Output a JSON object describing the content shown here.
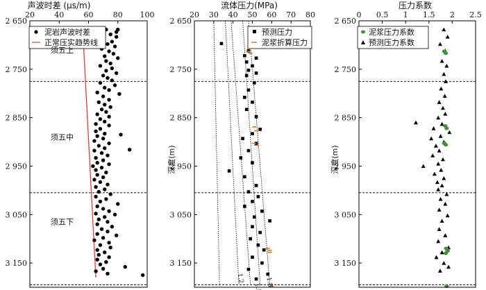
{
  "chart_data": [
    {
      "type": "scatter",
      "title": "声波时差 (μs/m)",
      "ylabel": "",
      "xlim": [
        20,
        100
      ],
      "ylim": [
        2650,
        3200
      ],
      "x_ticks": [
        "20",
        "40",
        "60",
        "80",
        "100"
      ],
      "y_ticks": [
        "2 650",
        "2 750",
        "2 850",
        "2 950",
        "3 050",
        "3 150"
      ],
      "zones": [
        {
          "name": "须五上",
          "depth": 2710
        },
        {
          "name": "须五中",
          "depth": 2890
        },
        {
          "name": "须五下",
          "depth": 3065
        }
      ],
      "boundaries": [
        2775,
        3005,
        3195
      ],
      "legend": [
        "泥岩声波时差",
        "正常压实趋势线"
      ],
      "series": [
        {
          "name": "泥岩声波时差",
          "points": [
            [
              72,
              2668
            ],
            [
              80,
              2668
            ],
            [
              79,
              2673
            ],
            [
              75,
              2678
            ],
            [
              79,
              2683
            ],
            [
              70,
              2688
            ],
            [
              76,
              2693
            ],
            [
              73,
              2698
            ],
            [
              78,
              2703
            ],
            [
              69,
              2708
            ],
            [
              74,
              2713
            ],
            [
              77,
              2718
            ],
            [
              71,
              2723
            ],
            [
              80,
              2727
            ],
            [
              72,
              2733
            ],
            [
              75,
              2738
            ],
            [
              68,
              2743
            ],
            [
              76,
              2748
            ],
            [
              72,
              2753
            ],
            [
              79,
              2758
            ],
            [
              70,
              2763
            ],
            [
              73,
              2768
            ],
            [
              76,
              2773
            ],
            [
              68,
              2778
            ],
            [
              78,
              2783
            ],
            [
              71,
              2788
            ],
            [
              74,
              2793
            ],
            [
              66,
              2798
            ],
            [
              81,
              2801
            ],
            [
              70,
              2806
            ],
            [
              74,
              2813
            ],
            [
              67,
              2818
            ],
            [
              71,
              2823
            ],
            [
              75,
              2828
            ],
            [
              69,
              2833
            ],
            [
              72,
              2838
            ],
            [
              66,
              2843
            ],
            [
              74,
              2848
            ],
            [
              68,
              2853
            ],
            [
              71,
              2858
            ],
            [
              65,
              2863
            ],
            [
              74,
              2866
            ],
            [
              68,
              2873
            ],
            [
              65,
              2878
            ],
            [
              71,
              2883
            ],
            [
              82,
              2885
            ],
            [
              66,
              2888
            ],
            [
              70,
              2893
            ],
            [
              64,
              2898
            ],
            [
              74,
              2903
            ],
            [
              67,
              2908
            ],
            [
              71,
              2913
            ],
            [
              88,
              2916
            ],
            [
              64,
              2918
            ],
            [
              69,
              2923
            ],
            [
              73,
              2928
            ],
            [
              65,
              2933
            ],
            [
              70,
              2938
            ],
            [
              66,
              2943
            ],
            [
              74,
              2946
            ],
            [
              63,
              2950
            ],
            [
              69,
              2953
            ],
            [
              65,
              2958
            ],
            [
              72,
              2963
            ],
            [
              66,
              2968
            ],
            [
              70,
              2973
            ],
            [
              64,
              2978
            ],
            [
              68,
              2983
            ],
            [
              73,
              2988
            ],
            [
              65,
              2993
            ],
            [
              71,
              2998
            ],
            [
              67,
              3003
            ],
            [
              75,
              3008
            ],
            [
              65,
              3013
            ],
            [
              72,
              3018
            ],
            [
              68,
              3023
            ],
            [
              80,
              3028
            ],
            [
              66,
              3033
            ],
            [
              70,
              3038
            ],
            [
              74,
              3043
            ],
            [
              65,
              3048
            ],
            [
              78,
              3050
            ],
            [
              71,
              3055
            ],
            [
              67,
              3060
            ],
            [
              73,
              3065
            ],
            [
              66,
              3070
            ],
            [
              76,
              3075
            ],
            [
              69,
              3080
            ],
            [
              73,
              3085
            ],
            [
              66,
              3090
            ],
            [
              79,
              3093
            ],
            [
              70,
              3098
            ],
            [
              64,
              3103
            ],
            [
              74,
              3108
            ],
            [
              68,
              3113
            ],
            [
              75,
              3118
            ],
            [
              66,
              3123
            ],
            [
              71,
              3128
            ],
            [
              67,
              3133
            ],
            [
              74,
              3138
            ],
            [
              66,
              3143
            ],
            [
              72,
              3148
            ],
            [
              68,
              3153
            ],
            [
              85,
              3158
            ],
            [
              70,
              3162
            ],
            [
              65,
              3167
            ],
            [
              73,
              3172
            ],
            [
              97,
              3175
            ]
          ]
        },
        {
          "name": "正常压实趋势线",
          "color": "#e23b2c",
          "line": [
            [
              56,
              2665
            ],
            [
              65,
              3180
            ]
          ]
        }
      ]
    },
    {
      "type": "scatter",
      "title": "流体压力(MPa)",
      "ylabel": "深度(m)",
      "xlim": [
        20,
        80
      ],
      "ylim": [
        2650,
        3200
      ],
      "x_ticks": [
        "20",
        "30",
        "40",
        "50",
        "60",
        "70",
        "80"
      ],
      "y_ticks": [
        "2 650",
        "2 750",
        "2 850",
        "2 950",
        "3 050",
        "3 150"
      ],
      "boundaries": [
        2775,
        3005,
        3195
      ],
      "legend": [
        "预测压力",
        "泥浆折算压力"
      ],
      "ref_lines": [
        {
          "label": "1.2"
        },
        {
          "label": "1.5"
        },
        {
          "label": "1.8"
        }
      ],
      "series": [
        {
          "name": "预测压力",
          "points": [
            [
              34,
              2697
            ],
            [
              50,
              2700
            ],
            [
              48,
              2712
            ],
            [
              46,
              2722
            ],
            [
              52,
              2727
            ],
            [
              47,
              2735
            ],
            [
              50,
              2743
            ],
            [
              48,
              2752
            ],
            [
              52,
              2758
            ],
            [
              47,
              2763
            ],
            [
              51,
              2778
            ],
            [
              48,
              2793
            ],
            [
              46,
              2808
            ],
            [
              50,
              2818
            ],
            [
              47,
              2833
            ],
            [
              52,
              2848
            ],
            [
              54,
              2874
            ],
            [
              50,
              2883
            ],
            [
              45,
              2893
            ],
            [
              52,
              2903
            ],
            [
              48,
              2918
            ],
            [
              44,
              2933
            ],
            [
              50,
              2943
            ],
            [
              38,
              2960
            ],
            [
              46,
              2972
            ],
            [
              52,
              2990
            ],
            [
              48,
              3003
            ],
            [
              53,
              3013
            ],
            [
              50,
              3023
            ],
            [
              46,
              3033
            ],
            [
              55,
              3043
            ],
            [
              51,
              3055
            ],
            [
              59,
              3063
            ],
            [
              50,
              3075
            ],
            [
              54,
              3087
            ],
            [
              49,
              3100
            ],
            [
              53,
              3113
            ],
            [
              56,
              3123
            ],
            [
              50,
              3138
            ],
            [
              55,
              3150
            ],
            [
              48,
              3163
            ],
            [
              58,
              3173
            ],
            [
              52,
              3183
            ]
          ]
        },
        {
          "name": "泥浆折算压力",
          "color": "#e07020",
          "points": [
            [
              48,
              2713
            ],
            [
              49,
              2717
            ],
            [
              51,
              2869
            ],
            [
              52,
              2877
            ],
            [
              51,
              2903
            ],
            [
              52,
              2907
            ],
            [
              58,
              3120
            ],
            [
              59,
              3124
            ],
            [
              59,
              3128
            ],
            [
              60,
              3198
            ]
          ]
        }
      ]
    },
    {
      "type": "scatter",
      "title": "压力系数",
      "ylabel": "深度(m)",
      "xlim": [
        0,
        2.5
      ],
      "ylim": [
        2650,
        3200
      ],
      "x_ticks": [
        "0",
        "0.5",
        "1",
        "1.5",
        "2",
        "2.5"
      ],
      "y_ticks": [
        "2 650",
        "2 750",
        "2 850",
        "2 950",
        "3 050",
        "3 150"
      ],
      "boundaries": [
        2775,
        3005,
        3195
      ],
      "legend": [
        "泥浆压力系数",
        "预测压力系数"
      ],
      "series": [
        {
          "name": "泥浆压力系数",
          "color": "#3f8f3a",
          "points": [
            [
              1.83,
              2713
            ],
            [
              1.86,
              2717
            ],
            [
              1.85,
              2867
            ],
            [
              1.88,
              2872
            ],
            [
              1.83,
              2903
            ],
            [
              1.86,
              2906
            ],
            [
              1.87,
              3120
            ],
            [
              1.9,
              3125
            ],
            [
              1.86,
              3130
            ],
            [
              1.88,
              3198
            ]
          ]
        },
        {
          "name": "预测压力系数",
          "points": [
            [
              1.82,
              2668
            ],
            [
              1.9,
              2683
            ],
            [
              1.74,
              2698
            ],
            [
              1.85,
              2712
            ],
            [
              1.78,
              2733
            ],
            [
              1.88,
              2743
            ],
            [
              1.82,
              2760
            ],
            [
              1.86,
              2775
            ],
            [
              1.76,
              2790
            ],
            [
              1.84,
              2805
            ],
            [
              1.72,
              2818
            ],
            [
              1.8,
              2830
            ],
            [
              1.85,
              2842
            ],
            [
              1.7,
              2850
            ],
            [
              1.22,
              2860
            ],
            [
              1.78,
              2863
            ],
            [
              1.6,
              2872
            ],
            [
              1.94,
              2880
            ],
            [
              1.75,
              2888
            ],
            [
              1.55,
              2893
            ],
            [
              1.82,
              2900
            ],
            [
              1.65,
              2908
            ],
            [
              1.72,
              2918
            ],
            [
              1.58,
              2928
            ],
            [
              1.8,
              2936
            ],
            [
              1.7,
              2945
            ],
            [
              1.38,
              2950
            ],
            [
              1.76,
              2958
            ],
            [
              1.62,
              2966
            ],
            [
              1.82,
              2975
            ],
            [
              1.68,
              2983
            ],
            [
              1.78,
              2990
            ],
            [
              1.7,
              2998
            ],
            [
              1.88,
              3008
            ],
            [
              1.75,
              3018
            ],
            [
              1.85,
              3028
            ],
            [
              1.72,
              3040
            ],
            [
              1.9,
              3052
            ],
            [
              1.78,
              3063
            ],
            [
              1.72,
              3080
            ],
            [
              1.85,
              3093
            ],
            [
              1.7,
              3105
            ],
            [
              1.92,
              3118
            ],
            [
              1.78,
              3128
            ],
            [
              1.66,
              3138
            ],
            [
              1.82,
              3150
            ],
            [
              1.92,
              3158
            ],
            [
              1.74,
              3166
            ]
          ]
        }
      ]
    }
  ]
}
